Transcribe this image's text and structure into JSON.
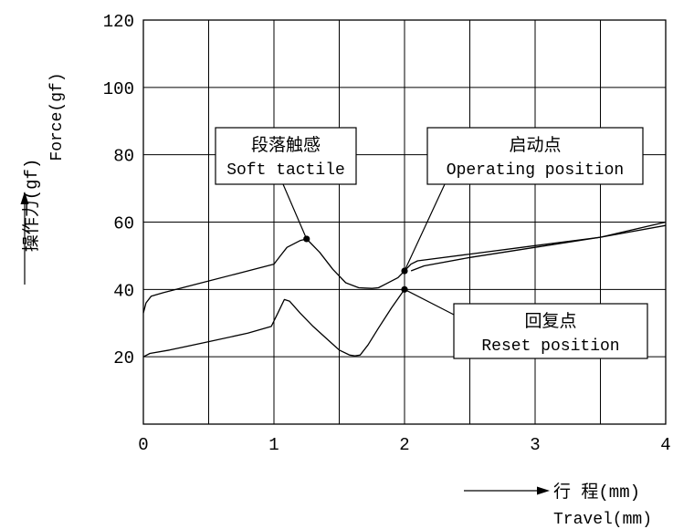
{
  "chart_data": {
    "type": "line",
    "title": "",
    "xlabel_cn": "行 程(mm)",
    "xlabel_en": "Travel(mm)",
    "ylabel_cn": "操作力(gf)",
    "ylabel_en": "Force(gf)",
    "xlim": [
      0,
      4
    ],
    "ylim": [
      0,
      120
    ],
    "x_ticks": [
      0,
      1,
      2,
      3,
      4
    ],
    "x_tick_labels": [
      "0",
      "1",
      "2",
      "3",
      "4"
    ],
    "y_ticks": [
      20,
      40,
      60,
      80,
      100,
      120
    ],
    "y_tick_labels": [
      "20",
      "40",
      "60",
      "80",
      "100",
      "120"
    ],
    "grid": true,
    "x_grid": [
      0.5,
      1,
      1.5,
      2,
      2.5,
      3,
      3.5
    ],
    "series": [
      {
        "x": [
          0,
          0.02,
          0.06,
          0.15,
          0.4,
          0.7,
          1.0,
          1.05,
          1.1,
          1.2,
          1.25,
          1.35,
          1.45,
          1.55,
          1.65,
          1.75,
          1.8,
          1.85,
          1.95,
          2.0,
          2.05,
          2.1,
          2.5,
          3.0,
          3.5,
          4.0
        ],
        "values": [
          33,
          36,
          38,
          39,
          41.5,
          44.5,
          47.5,
          50,
          52.5,
          54.5,
          55,
          51,
          46,
          42,
          40.5,
          40.3,
          40.5,
          41.5,
          43.5,
          45.5,
          47.5,
          48.5,
          50.5,
          53,
          55.5,
          60
        ]
      },
      {
        "x": [
          2.05,
          2.15,
          2.5,
          3.0,
          3.5,
          4.0
        ],
        "values": [
          45.5,
          47,
          49.5,
          52.5,
          55.5,
          59
        ]
      },
      {
        "x": [
          0,
          0.05,
          0.2,
          0.5,
          0.8,
          0.98,
          1.03,
          1.08,
          1.12,
          1.2,
          1.3,
          1.4,
          1.5,
          1.58,
          1.62,
          1.66,
          1.72,
          1.8,
          1.9,
          2.0
        ],
        "values": [
          20,
          21,
          22,
          24.5,
          27,
          29,
          33,
          37,
          36.5,
          33,
          29,
          25.5,
          22,
          20.5,
          20.3,
          20.5,
          23.5,
          28.5,
          34.5,
          40
        ]
      }
    ],
    "points": [
      {
        "x": 1.25,
        "y": 55
      },
      {
        "x": 2.0,
        "y": 45.5
      },
      {
        "x": 2.0,
        "y": 40
      }
    ],
    "annotations": [
      {
        "cn": "段落触感",
        "en": "Soft tactile",
        "x": 1.25,
        "y": 55
      },
      {
        "cn": "启动点",
        "en": "Operating position",
        "x": 2.0,
        "y": 45.5
      },
      {
        "cn": "回复点",
        "en": "Reset position",
        "x": 2.0,
        "y": 40
      }
    ]
  }
}
